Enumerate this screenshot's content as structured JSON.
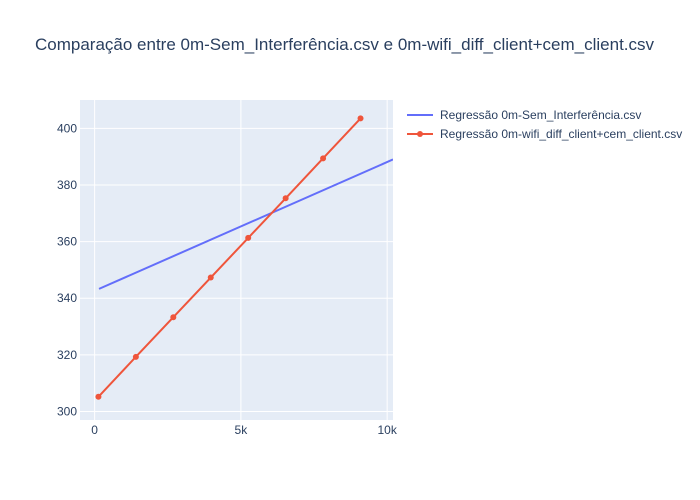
{
  "chart_data": {
    "type": "line",
    "title": "Comparação entre 0m-Sem_Interferência.csv e 0m-wifi_diff_client+cem_client.csv",
    "xlabel": "",
    "ylabel": "",
    "xlim": [
      -500,
      10200
    ],
    "ylim": [
      297,
      410
    ],
    "xticks": [
      0,
      5000,
      10000
    ],
    "xtick_labels": [
      "0",
      "5k",
      "10k"
    ],
    "yticks": [
      300,
      320,
      340,
      360,
      380,
      400
    ],
    "ytick_labels": [
      "300",
      "320",
      "340",
      "360",
      "380",
      "400"
    ],
    "grid": true,
    "legend_position": "top-right, outside plot area",
    "series": [
      {
        "name": "Regressão 0m-Sem_Interferência.csv",
        "mode": "lines",
        "color": "#636efa",
        "x": [
          150,
          10200
        ],
        "y": [
          343.3,
          389.0
        ]
      },
      {
        "name": "Regressão 0m-wifi_diff_client+cem_client.csv",
        "mode": "lines+markers",
        "color": "#ef553b",
        "x": [
          130,
          1410,
          2690,
          3970,
          5250,
          6530,
          7810,
          9090
        ],
        "y": [
          305.2,
          319.3,
          333.3,
          347.3,
          361.3,
          375.3,
          389.4,
          403.5
        ]
      }
    ]
  }
}
